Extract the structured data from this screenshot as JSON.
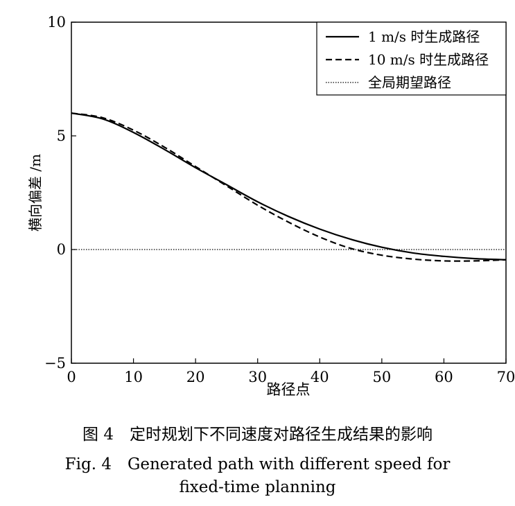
{
  "chart_data": {
    "type": "line",
    "xlabel": "路径点",
    "ylabel": "横向偏差 /m",
    "xlim": [
      0,
      70
    ],
    "ylim": [
      -5,
      10
    ],
    "xticks": [
      0,
      10,
      20,
      30,
      40,
      50,
      60,
      70
    ],
    "yticks": [
      -5,
      0,
      5,
      10
    ],
    "grid": false,
    "legend_position": "top-right",
    "series": [
      {
        "name": "1 m/s 时生成路径",
        "style": "solid",
        "x": [
          0,
          5,
          10,
          15,
          20,
          25,
          30,
          35,
          40,
          45,
          50,
          55,
          60,
          65,
          70
        ],
        "y": [
          6.0,
          5.75,
          5.15,
          4.4,
          3.6,
          2.85,
          2.1,
          1.45,
          0.9,
          0.45,
          0.1,
          -0.15,
          -0.3,
          -0.4,
          -0.45
        ]
      },
      {
        "name": "10 m/s 时生成路径",
        "style": "dashed",
        "x": [
          0,
          5,
          10,
          15,
          20,
          25,
          30,
          35,
          40,
          45,
          50,
          55,
          60,
          65,
          70
        ],
        "y": [
          6.0,
          5.8,
          5.25,
          4.5,
          3.65,
          2.8,
          1.95,
          1.2,
          0.55,
          0.05,
          -0.25,
          -0.42,
          -0.5,
          -0.5,
          -0.45
        ]
      },
      {
        "name": "全局期望路径",
        "style": "dotted",
        "x": [
          0,
          70
        ],
        "y": [
          0,
          0
        ]
      }
    ]
  },
  "caption": {
    "cn": "图 4　定时规划下不同速度对路径生成结果的影响",
    "en_line1": "Fig. 4　Generated path with different speed for",
    "en_line2": "fixed-time planning"
  }
}
